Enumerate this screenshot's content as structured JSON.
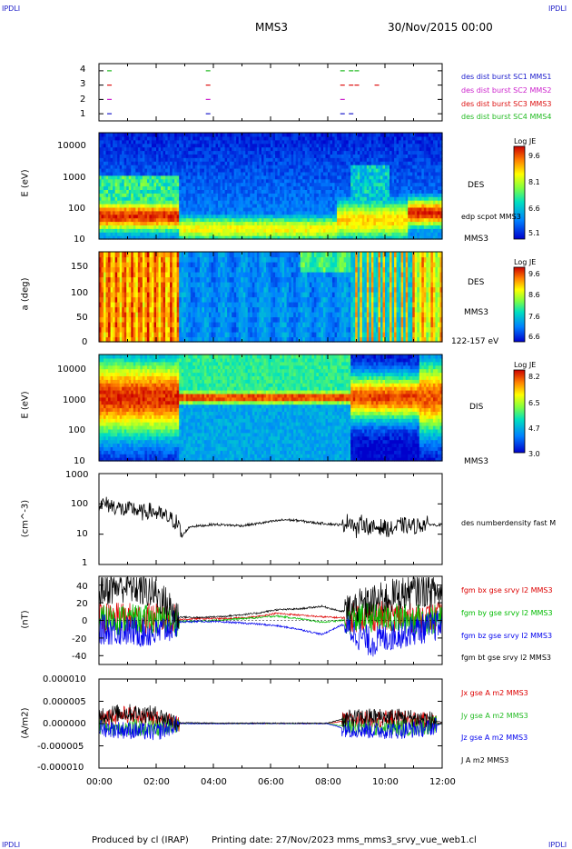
{
  "header": {
    "corner_tl": "IPDLI",
    "corner_tr": "IPDLI",
    "corner_bl": "IPDLI",
    "corner_br": "IPDLI",
    "spacecraft": "MMS3",
    "date": "30/Nov/2015 00:00"
  },
  "footer": {
    "credit": "Produced by cl (IRAP)",
    "printing": "Printing date: 27/Nov/2023",
    "script": "mms_mms3_srvy_vue_web1.cl"
  },
  "colors": {
    "mms1": "#1a1acc",
    "mms2": "#cc22cc",
    "mms3": "#dd1111",
    "mms4": "#22bb22",
    "bx": "#dd0000",
    "by": "#00bb00",
    "bz": "#0000ee",
    "bt": "#000000"
  },
  "chart_data": [
    {
      "type": "scatter",
      "panel": "burst availability",
      "y_ticks": [
        "1",
        "2",
        "3",
        "4"
      ],
      "ylim": [
        0.5,
        4.5
      ],
      "legend": [
        {
          "label": "des dist burst SC1 MMS1",
          "color": "#1a1acc"
        },
        {
          "label": "des dist burst SC2 MMS2",
          "color": "#cc22cc"
        },
        {
          "label": "des dist burst SC3 MMS3",
          "color": "#dd1111"
        },
        {
          "label": "des dist burst SC4 MMS4",
          "color": "#22bb22"
        }
      ],
      "marks": [
        {
          "x": 0.35,
          "y": 4,
          "color": "#22bb22"
        },
        {
          "x": 0.35,
          "y": 3,
          "color": "#dd1111"
        },
        {
          "x": 0.35,
          "y": 2,
          "color": "#cc22cc"
        },
        {
          "x": 0.35,
          "y": 1,
          "color": "#1a1acc"
        },
        {
          "x": 3.8,
          "y": 4,
          "color": "#22bb22"
        },
        {
          "x": 3.8,
          "y": 3,
          "color": "#dd1111"
        },
        {
          "x": 3.8,
          "y": 2,
          "color": "#cc22cc"
        },
        {
          "x": 3.8,
          "y": 1,
          "color": "#1a1acc"
        },
        {
          "x": 8.5,
          "y": 4,
          "color": "#22bb22"
        },
        {
          "x": 8.5,
          "y": 3,
          "color": "#dd1111"
        },
        {
          "x": 8.5,
          "y": 2,
          "color": "#cc22cc"
        },
        {
          "x": 8.5,
          "y": 1,
          "color": "#1a1acc"
        },
        {
          "x": 8.8,
          "y": 4,
          "color": "#22bb22"
        },
        {
          "x": 8.8,
          "y": 3,
          "color": "#dd1111"
        },
        {
          "x": 8.8,
          "y": 1,
          "color": "#1a1acc"
        },
        {
          "x": 9.0,
          "y": 4,
          "color": "#22bb22"
        },
        {
          "x": 9.0,
          "y": 3,
          "color": "#dd1111"
        },
        {
          "x": 9.7,
          "y": 3,
          "color": "#dd1111"
        }
      ]
    },
    {
      "type": "heatmap",
      "panel": "DES energy spectrogram",
      "ylabel": "E (eV)",
      "y_scale": "log",
      "ylim": [
        10,
        30000
      ],
      "y_ticks": [
        "10",
        "100",
        "1000",
        "10000"
      ],
      "instrument": "DES",
      "spacecraft": "MMS3",
      "overlay_label": "edp scpot MMS3",
      "colorbar": {
        "title": "Log JE",
        "ticks": [
          "9.6",
          "8.1",
          "6.6",
          "5.1"
        ],
        "min": 5.1,
        "max": 9.6
      }
    },
    {
      "type": "heatmap",
      "panel": "DES pitch angle",
      "ylabel": "a (deg)",
      "ylim": [
        0,
        180
      ],
      "y_ticks": [
        "0",
        "50",
        "100",
        "150"
      ],
      "instrument": "DES",
      "spacecraft": "MMS3",
      "energy_range": "122-157 eV",
      "colorbar": {
        "title": "Log JE",
        "ticks": [
          "9.6",
          "8.6",
          "7.6",
          "6.6"
        ],
        "min": 6.6,
        "max": 9.6
      }
    },
    {
      "type": "heatmap",
      "panel": "DIS energy spectrogram",
      "ylabel": "E (eV)",
      "y_scale": "log",
      "ylim": [
        10,
        30000
      ],
      "y_ticks": [
        "10",
        "100",
        "1000",
        "10000"
      ],
      "instrument": "DIS",
      "spacecraft": "MMS3",
      "colorbar": {
        "title": "Log JE",
        "ticks": [
          "8.2",
          "6.5",
          "4.7",
          "3.0"
        ],
        "min": 3.0,
        "max": 8.2
      }
    },
    {
      "type": "line",
      "panel": "density",
      "ylabel": "(cm^-3)",
      "y_scale": "log",
      "ylim": [
        1,
        1000
      ],
      "y_ticks": [
        "1",
        "10",
        "100",
        "1000"
      ],
      "series": [
        {
          "name": "des numberdensity fast M",
          "color": "#000000",
          "x": [
            0,
            0.3,
            0.6,
            0.9,
            1.2,
            1.5,
            1.8,
            2.1,
            2.4,
            2.7,
            2.9,
            3.2,
            3.6,
            4.0,
            4.5,
            5.0,
            5.5,
            6.0,
            6.5,
            7.0,
            7.5,
            8.0,
            8.5,
            8.8,
            9.0,
            9.2,
            9.5,
            9.8,
            10.2,
            10.6,
            11.0,
            11.4,
            11.8,
            12.0
          ],
          "y": [
            100,
            95,
            80,
            60,
            70,
            50,
            60,
            45,
            35,
            25,
            8,
            18,
            19,
            21,
            20,
            19,
            22,
            26,
            30,
            28,
            24,
            22,
            20,
            30,
            12,
            25,
            15,
            18,
            14,
            20,
            18,
            22,
            20,
            21
          ]
        }
      ]
    },
    {
      "type": "line",
      "panel": "magnetic field",
      "ylabel": "(nT)",
      "ylim": [
        -50,
        50
      ],
      "y_ticks": [
        "-40",
        "-20",
        "0",
        "20",
        "40"
      ],
      "series": [
        {
          "name": "fgm bx gse srvy l2 MMS3",
          "color": "#dd0000",
          "x": [
            0,
            1,
            2,
            2.8,
            3.5,
            4.5,
            5.5,
            6.2,
            7.0,
            7.8,
            8.5,
            9.5,
            10.5,
            11.5,
            12.0
          ],
          "y": [
            2,
            3,
            2,
            1,
            2,
            2,
            4,
            8,
            6,
            4,
            3,
            5,
            4,
            3,
            3
          ]
        },
        {
          "name": "fgm by gse srvy l2 MMS3",
          "color": "#00bb00",
          "x": [
            0,
            1,
            2,
            2.8,
            3.5,
            4.5,
            5.5,
            6.2,
            7.0,
            7.8,
            8.5,
            9.5,
            10.5,
            11.5,
            12.0
          ],
          "y": [
            0,
            1,
            0,
            -1,
            -1,
            1,
            3,
            5,
            2,
            -2,
            0,
            4,
            2,
            1,
            0
          ]
        },
        {
          "name": "fgm bz gse srvy l2 MMS3",
          "color": "#0000ee",
          "x": [
            0,
            1,
            2,
            2.8,
            3.5,
            4.5,
            5.5,
            6.2,
            7.0,
            7.8,
            8.5,
            9.5,
            10.5,
            11.5,
            12.0
          ],
          "y": [
            -10,
            -12,
            -15,
            -2,
            -1,
            -2,
            -4,
            -6,
            -10,
            -16,
            -5,
            -25,
            -15,
            -8,
            -5
          ]
        },
        {
          "name": "fgm bt gse srvy l2 MMS3",
          "color": "#000000",
          "x": [
            0,
            1,
            2,
            2.8,
            3.5,
            4.5,
            5.5,
            6.2,
            7.0,
            7.8,
            8.5,
            9.5,
            10.5,
            11.5,
            12.0
          ],
          "y": [
            35,
            40,
            30,
            4,
            3,
            5,
            8,
            12,
            13,
            16,
            10,
            20,
            30,
            35,
            30
          ]
        }
      ]
    },
    {
      "type": "line",
      "panel": "current density",
      "ylabel": "(A/m2)",
      "ylim": [
        -1e-05,
        1e-05
      ],
      "y_ticks": [
        "-0.000010",
        "-0.000005",
        "0.000000",
        "0.000005",
        "0.000010"
      ],
      "series": [
        {
          "name": "Jx gse A m2 MMS3",
          "color": "#dd0000",
          "x": [
            0,
            1,
            2,
            2.8,
            4,
            6,
            8,
            8.5,
            9.5,
            10.5,
            11.5,
            12
          ],
          "y": [
            1.5e-06,
            2e-06,
            1e-06,
            0,
            0,
            0,
            0,
            5e-07,
            1e-06,
            1e-06,
            5e-07,
            0
          ]
        },
        {
          "name": "Jy gse A m2 MMS3",
          "color": "#22bb22",
          "x": [
            0,
            1,
            2,
            2.8,
            4,
            6,
            8,
            8.5,
            9.5,
            10.5,
            11.5,
            12
          ],
          "y": [
            -5e-07,
            -1e-06,
            -1e-06,
            0,
            0,
            0,
            0,
            -5e-07,
            -1e-06,
            -1e-06,
            -5e-07,
            0
          ]
        },
        {
          "name": "Jz gse A m2 MMS3",
          "color": "#0000ee",
          "x": [
            0,
            1,
            2,
            2.8,
            4,
            6,
            8,
            8.5,
            9.5,
            10.5,
            11.5,
            12
          ],
          "y": [
            -1e-06,
            -1.5e-06,
            -2e-06,
            0,
            0,
            0,
            0,
            -1e-06,
            -1.5e-06,
            -1.5e-06,
            -1e-06,
            0
          ]
        },
        {
          "name": "J A m2 MMS3",
          "color": "#000000",
          "x": [
            0,
            1,
            2,
            2.8,
            4,
            6,
            8,
            8.5,
            9.5,
            10.5,
            11.5,
            12
          ],
          "y": [
            2e-06,
            2.5e-06,
            2e-06,
            2e-07,
            1e-07,
            1e-07,
            1e-07,
            1e-06,
            1.5e-06,
            1.5e-06,
            1e-06,
            2e-07
          ]
        }
      ]
    }
  ],
  "time_axis": {
    "ticks": [
      "00:00",
      "02:00",
      "04:00",
      "06:00",
      "08:00",
      "10:00",
      "12:00"
    ],
    "range_hours": [
      0,
      12
    ]
  }
}
